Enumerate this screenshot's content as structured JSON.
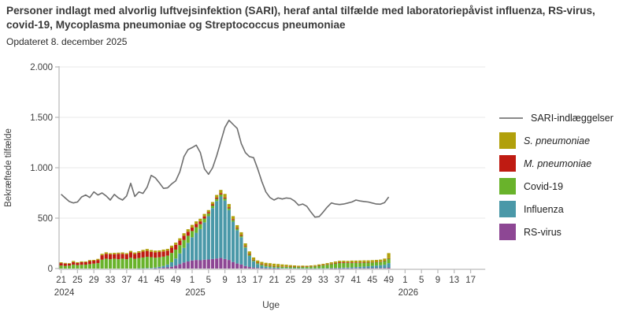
{
  "header": {
    "title": "Personer indlagt med alvorlig luftvejsinfektion (SARI), heraf antal tilfælde med laboratoriepåvist influenza, RS-virus, covid-19, Mycoplasma pneumoniae og Streptococcus pneumoniae",
    "subtitle": "Opdateret 8. december 2025"
  },
  "axes": {
    "y_label": "Bekræftede tilfælde",
    "x_label": "Uge",
    "y_ticks": [
      {
        "value": 0,
        "label": "0"
      },
      {
        "value": 500,
        "label": "500"
      },
      {
        "value": 1000,
        "label": "1.000"
      },
      {
        "value": 1500,
        "label": "1.500"
      },
      {
        "value": 2000,
        "label": "2.000"
      }
    ],
    "x_ticks": [
      {
        "index": 0,
        "label": "21"
      },
      {
        "index": 4,
        "label": "25"
      },
      {
        "index": 8,
        "label": "29"
      },
      {
        "index": 12,
        "label": "33"
      },
      {
        "index": 16,
        "label": "37"
      },
      {
        "index": 20,
        "label": "41"
      },
      {
        "index": 24,
        "label": "45"
      },
      {
        "index": 28,
        "label": "49"
      },
      {
        "index": 32,
        "label": "1"
      },
      {
        "index": 36,
        "label": "5"
      },
      {
        "index": 40,
        "label": "9"
      },
      {
        "index": 44,
        "label": "13"
      },
      {
        "index": 48,
        "label": "17"
      },
      {
        "index": 52,
        "label": "21"
      },
      {
        "index": 56,
        "label": "25"
      },
      {
        "index": 60,
        "label": "29"
      },
      {
        "index": 64,
        "label": "33"
      },
      {
        "index": 68,
        "label": "37"
      },
      {
        "index": 72,
        "label": "41"
      },
      {
        "index": 76,
        "label": "45"
      },
      {
        "index": 80,
        "label": "49"
      },
      {
        "index": 84,
        "label": "1"
      },
      {
        "index": 88,
        "label": "5"
      },
      {
        "index": 92,
        "label": "9"
      },
      {
        "index": 96,
        "label": "13"
      },
      {
        "index": 100,
        "label": "17"
      }
    ],
    "year_labels": [
      {
        "index": 0,
        "label": "2024"
      },
      {
        "index": 32,
        "label": "2025"
      },
      {
        "index": 84,
        "label": "2026"
      }
    ]
  },
  "legend": {
    "line_item": {
      "id": "sari-indlaeggelser",
      "label": "SARI-indlæggelser",
      "color": "#8a8a8a"
    },
    "items": [
      {
        "id": "s-pneumoniae",
        "label": "S. pneumoniae",
        "color": "#b1a00b",
        "italic": true
      },
      {
        "id": "m-pneumoniae",
        "label": "M. pneumoniae",
        "color": "#bf1b12",
        "italic": true
      },
      {
        "id": "covid-19",
        "label": "Covid-19",
        "color": "#69b32b",
        "italic": false
      },
      {
        "id": "influenza",
        "label": "Influenza",
        "color": "#4a98a8",
        "italic": false
      },
      {
        "id": "rs-virus",
        "label": "RS-virus",
        "color": "#8d4794",
        "italic": false
      }
    ]
  },
  "chart_data": {
    "type": "bar",
    "stacked": true,
    "x_start": "2024-uge21",
    "x_end": "2025-uge49",
    "n_weeks": 81,
    "x_slots": 103.5,
    "ylim": [
      0,
      2000
    ],
    "grid": "horizontal",
    "legend_position": "right",
    "series": [
      {
        "name": "RS-virus",
        "color": "#8d4794",
        "values": [
          0,
          0,
          0,
          0,
          0,
          0,
          0,
          0,
          0,
          0,
          0,
          0,
          0,
          0,
          0,
          0,
          0,
          0,
          0,
          0,
          0,
          0,
          0,
          2,
          5,
          8,
          12,
          18,
          30,
          45,
          60,
          70,
          80,
          85,
          82,
          88,
          90,
          95,
          100,
          105,
          95,
          85,
          65,
          50,
          40,
          25,
          15,
          10,
          6,
          4,
          2,
          2,
          1,
          1,
          0,
          0,
          0,
          0,
          0,
          0,
          0,
          0,
          0,
          0,
          0,
          0,
          1,
          1,
          1,
          2,
          2,
          2,
          3,
          3,
          3,
          4,
          4,
          5,
          5,
          5,
          8
        ]
      },
      {
        "name": "Influenza",
        "color": "#4a98a8",
        "values": [
          0,
          0,
          0,
          0,
          0,
          0,
          0,
          0,
          0,
          0,
          0,
          0,
          0,
          0,
          0,
          0,
          0,
          0,
          0,
          2,
          3,
          5,
          6,
          8,
          12,
          18,
          28,
          45,
          70,
          105,
          145,
          185,
          230,
          270,
          310,
          370,
          430,
          505,
          570,
          610,
          580,
          495,
          400,
          330,
          270,
          180,
          110,
          62,
          38,
          24,
          16,
          12,
          9,
          7,
          5,
          5,
          4,
          4,
          3,
          3,
          2,
          2,
          2,
          3,
          3,
          4,
          4,
          5,
          6,
          7,
          8,
          10,
          12,
          14,
          17,
          19,
          22,
          25,
          28,
          33,
          46
        ]
      },
      {
        "name": "Covid-19",
        "color": "#69b32b",
        "values": [
          30,
          27,
          29,
          39,
          34,
          37,
          39,
          44,
          49,
          54,
          88,
          98,
          93,
          98,
          93,
          98,
          93,
          107,
          97,
          102,
          107,
          112,
          107,
          98,
          95,
          92,
          88,
          92,
          88,
          82,
          78,
          70,
          62,
          55,
          48,
          38,
          28,
          25,
          22,
          20,
          20,
          18,
          16,
          15,
          14,
          12,
          12,
          10,
          10,
          12,
          12,
          10,
          10,
          11,
          12,
          12,
          11,
          12,
          12,
          13,
          15,
          17,
          20,
          24,
          29,
          34,
          39,
          44,
          48,
          47,
          45,
          44,
          42,
          40,
          38,
          36,
          34,
          33,
          32,
          36,
          44
        ]
      },
      {
        "name": "M. pneumoniae",
        "color": "#bf1b12",
        "values": [
          24,
          22,
          19,
          24,
          21,
          26,
          24,
          30,
          29,
          31,
          44,
          48,
          48,
          44,
          53,
          48,
          48,
          53,
          48,
          53,
          58,
          58,
          53,
          53,
          52,
          52,
          50,
          52,
          48,
          45,
          42,
          40,
          35,
          32,
          28,
          22,
          12,
          12,
          12,
          12,
          10,
          10,
          9,
          8,
          8,
          8,
          8,
          6,
          5,
          6,
          5,
          5,
          4,
          4,
          4,
          4,
          4,
          3,
          3,
          3,
          3,
          3,
          3,
          4,
          4,
          4,
          5,
          6,
          7,
          7,
          6,
          6,
          5,
          5,
          5,
          4,
          4,
          4,
          4,
          4,
          5
        ]
      },
      {
        "name": "S. pneumoniae",
        "color": "#b1a00b",
        "values": [
          8,
          7,
          6,
          12,
          8,
          8,
          8,
          10,
          8,
          11,
          14,
          15,
          12,
          14,
          12,
          14,
          12,
          15,
          14,
          15,
          17,
          19,
          17,
          17,
          16,
          18,
          17,
          20,
          21,
          23,
          25,
          25,
          26,
          26,
          26,
          24,
          20,
          23,
          26,
          33,
          35,
          32,
          30,
          27,
          28,
          25,
          25,
          22,
          21,
          20,
          22,
          24,
          24,
          22,
          20,
          17,
          15,
          12,
          10,
          10,
          8,
          9,
          9,
          10,
          11,
          12,
          13,
          14,
          15,
          15,
          15,
          17,
          17,
          18,
          18,
          18,
          19,
          19,
          20,
          21,
          50
        ]
      }
    ],
    "line_series": {
      "name": "SARI-indlæggelser",
      "color": "#6e6e6e",
      "values": [
        737,
        700,
        665,
        651,
        660,
        710,
        730,
        705,
        760,
        730,
        750,
        720,
        680,
        735,
        700,
        680,
        720,
        846,
        715,
        760,
        745,
        807,
        924,
        900,
        850,
        795,
        800,
        840,
        870,
        960,
        1110,
        1180,
        1200,
        1224,
        1150,
        990,
        935,
        1000,
        1120,
        1260,
        1400,
        1471,
        1430,
        1390,
        1240,
        1150,
        1110,
        1100,
        990,
        865,
        760,
        705,
        680,
        700,
        690,
        700,
        695,
        670,
        628,
        640,
        618,
        560,
        510,
        515,
        560,
        610,
        651,
        640,
        635,
        640,
        650,
        660,
        680,
        670,
        665,
        660,
        650,
        640,
        638,
        655,
        710
      ]
    }
  },
  "style": {
    "grid_color": "#eaeaea",
    "axis_color": "#bcbcbc",
    "tick_text_color": "#3f3f3f"
  }
}
